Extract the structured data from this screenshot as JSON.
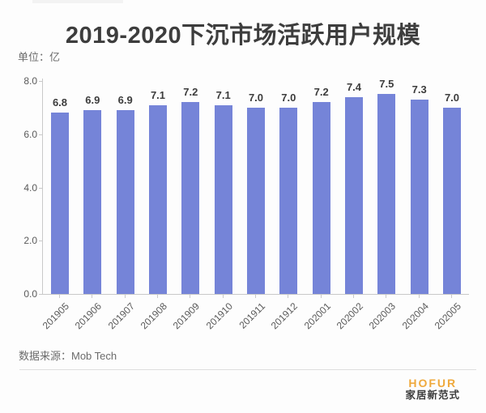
{
  "page": {
    "title": "2019-2020下沉市场活跃用户规模",
    "unit_label": "单位：亿",
    "source_label": "数据来源：Mob Tech",
    "logo": {
      "brand": "HOFUR",
      "tagline": "家居新范式"
    },
    "colors": {
      "bar": "#7584d8",
      "brand_orange": "#efa93c",
      "axis": "#c9c9c9",
      "tick_text": "#5a5a5a",
      "title_text": "#3d3d3d"
    }
  },
  "chart_data": {
    "type": "bar",
    "title": "2019-2020下沉市场活跃用户规模",
    "unit": "亿",
    "categories": [
      "201905",
      "201906",
      "201907",
      "201908",
      "201909",
      "201910",
      "201911",
      "201912",
      "202001",
      "202002",
      "202003",
      "202004",
      "202005"
    ],
    "values": [
      6.8,
      6.9,
      6.9,
      7.1,
      7.2,
      7.1,
      7.0,
      7.0,
      7.2,
      7.4,
      7.5,
      7.3,
      7.0
    ],
    "value_labels": [
      "6.8",
      "6.9",
      "6.9",
      "7.1",
      "7.2",
      "7.1",
      "7.0",
      "7.0",
      "7.2",
      "7.4",
      "7.5",
      "7.3",
      "7.0"
    ],
    "xlabel": "",
    "ylabel": "",
    "ylim": [
      0,
      8
    ],
    "yticks": [
      0.0,
      2.0,
      4.0,
      6.0,
      8.0
    ],
    "ytick_labels": [
      "0.0",
      "2.0",
      "4.0",
      "6.0",
      "8.0"
    ],
    "xtick_rotation_deg": -45,
    "grid": false,
    "legend": "none",
    "bar_color": "#7584d8",
    "source": "数据来源：Mob Tech"
  }
}
